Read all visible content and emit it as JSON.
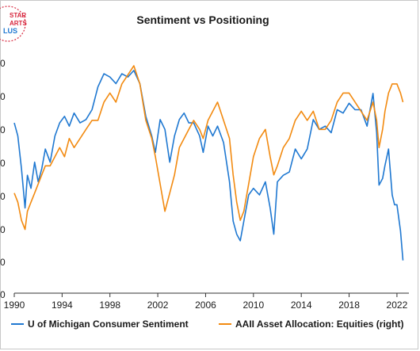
{
  "logo": {
    "line1": "STAR",
    "line2": "ARTS",
    "line3": "LUS"
  },
  "colors": {
    "umich": "#1f78d1",
    "aaii": "#f28a10",
    "axis": "#333333",
    "logo_red": "#d7263d",
    "logo_blue": "#1f78d1"
  },
  "chart_data": {
    "type": "line",
    "title": "Sentiment vs Positioning",
    "xlabel": "",
    "ylabel": "",
    "x_ticks": [
      "1990",
      "1994",
      "1998",
      "2002",
      "2006",
      "2010",
      "2014",
      "2018",
      "2022"
    ],
    "xlim": [
      1990,
      2023
    ],
    "left_tick_labels": [
      "0",
      "0",
      "0",
      "0",
      "0",
      "0",
      "0",
      "0",
      "0"
    ],
    "legend_position": "bottom",
    "grid": false,
    "series": [
      {
        "name": "U of Michigan Consumer Sentiment",
        "axis": "left",
        "x": [
          1990.0,
          1990.3,
          1990.6,
          1990.9,
          1991.1,
          1991.4,
          1991.7,
          1992.0,
          1992.3,
          1992.6,
          1993.0,
          1993.4,
          1993.8,
          1994.2,
          1994.6,
          1995.0,
          1995.5,
          1996.0,
          1996.5,
          1997.0,
          1997.5,
          1998.0,
          1998.5,
          1999.0,
          1999.5,
          2000.0,
          2000.5,
          2001.0,
          2001.5,
          2001.8,
          2002.2,
          2002.6,
          2003.0,
          2003.4,
          2003.8,
          2004.2,
          2004.6,
          2005.0,
          2005.5,
          2005.8,
          2006.2,
          2006.6,
          2007.0,
          2007.5,
          2008.0,
          2008.3,
          2008.6,
          2008.9,
          2009.2,
          2009.6,
          2010.0,
          2010.5,
          2011.0,
          2011.4,
          2011.7,
          2012.0,
          2012.5,
          2013.0,
          2013.5,
          2014.0,
          2014.5,
          2015.0,
          2015.5,
          2016.0,
          2016.5,
          2017.0,
          2017.5,
          2018.0,
          2018.5,
          2019.0,
          2019.5,
          2020.0,
          2020.3,
          2020.5,
          2020.8,
          2021.0,
          2021.3,
          2021.6,
          2021.8,
          2022.0,
          2022.3,
          2022.5
        ],
        "values": [
          92,
          88,
          78,
          66,
          76,
          72,
          80,
          74,
          78,
          84,
          80,
          88,
          92,
          94,
          91,
          95,
          92,
          93,
          96,
          103,
          107,
          106,
          104,
          107,
          106,
          108,
          104,
          94,
          88,
          83,
          93,
          90,
          80,
          88,
          93,
          95,
          92,
          92,
          88,
          83,
          91,
          88,
          91,
          86,
          74,
          62,
          58,
          56,
          62,
          70,
          72,
          70,
          74,
          66,
          58,
          74,
          76,
          77,
          84,
          81,
          84,
          93,
          90,
          91,
          89,
          96,
          95,
          98,
          96,
          96,
          91,
          101,
          89,
          73,
          75,
          79,
          84,
          70,
          67,
          67,
          59,
          50
        ]
      },
      {
        "name": "AAII Asset Allocation: Equities (right)",
        "axis": "right",
        "x": [
          1990.0,
          1990.3,
          1990.6,
          1990.9,
          1991.1,
          1991.4,
          1991.7,
          1992.0,
          1992.3,
          1992.6,
          1993.0,
          1993.4,
          1993.8,
          1994.2,
          1994.6,
          1995.0,
          1995.5,
          1996.0,
          1996.5,
          1997.0,
          1997.5,
          1998.0,
          1998.5,
          1999.0,
          1999.5,
          2000.0,
          2000.5,
          2001.0,
          2001.5,
          2001.8,
          2002.2,
          2002.6,
          2003.0,
          2003.4,
          2003.8,
          2004.2,
          2004.6,
          2005.0,
          2005.5,
          2005.8,
          2006.2,
          2006.6,
          2007.0,
          2007.5,
          2008.0,
          2008.3,
          2008.6,
          2008.9,
          2009.2,
          2009.6,
          2010.0,
          2010.5,
          2011.0,
          2011.4,
          2011.7,
          2012.0,
          2012.5,
          2013.0,
          2013.5,
          2014.0,
          2014.5,
          2015.0,
          2015.5,
          2016.0,
          2016.5,
          2017.0,
          2017.5,
          2018.0,
          2018.5,
          2019.0,
          2019.5,
          2020.0,
          2020.3,
          2020.5,
          2020.8,
          2021.0,
          2021.3,
          2021.6,
          2021.8,
          2022.0,
          2022.3,
          2022.5
        ],
        "values": [
          46,
          44,
          40,
          38,
          42,
          44,
          46,
          48,
          50,
          52,
          52,
          54,
          56,
          54,
          58,
          56,
          58,
          60,
          62,
          62,
          66,
          68,
          66,
          70,
          72,
          74,
          70,
          62,
          58,
          54,
          48,
          42,
          46,
          50,
          56,
          58,
          60,
          62,
          60,
          58,
          62,
          64,
          66,
          62,
          58,
          50,
          44,
          40,
          42,
          48,
          54,
          58,
          60,
          54,
          50,
          52,
          56,
          58,
          62,
          64,
          62,
          64,
          60,
          60,
          62,
          66,
          68,
          68,
          66,
          64,
          62,
          66,
          62,
          56,
          60,
          64,
          68,
          70,
          70,
          70,
          68,
          66
        ]
      }
    ],
    "left_ylim": [
      40,
      115
    ],
    "right_ylim": [
      24,
      78
    ]
  }
}
